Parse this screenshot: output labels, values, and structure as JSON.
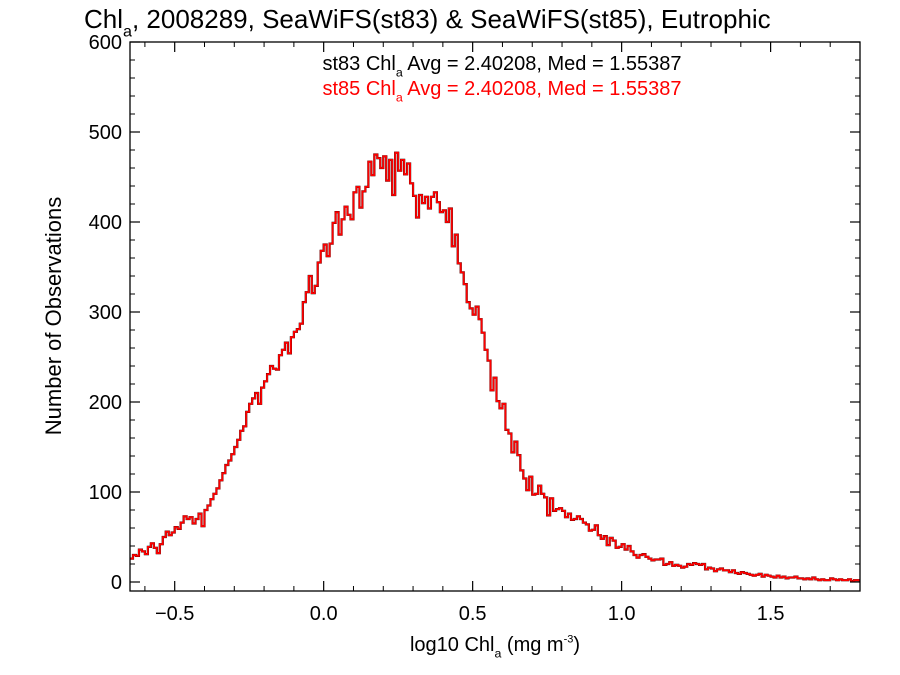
{
  "chart_data": {
    "type": "histogram-step",
    "title": {
      "parts": [
        {
          "text": "Chl",
          "style": "normal"
        },
        {
          "text": "a",
          "style": "sub"
        },
        {
          "text": ", 2008289, SeaWiFS(st83) & SeaWiFS(st85), Eutrophic",
          "style": "normal"
        }
      ]
    },
    "xlabel": {
      "parts": [
        {
          "text": "log10 Chl",
          "style": "normal"
        },
        {
          "text": "a",
          "style": "sub"
        },
        {
          "text": " (mg m",
          "style": "normal"
        },
        {
          "text": "-3",
          "style": "sup"
        },
        {
          "text": ")",
          "style": "normal"
        }
      ]
    },
    "ylabel": "Number of Observations",
    "xlim": [
      -0.65,
      1.8
    ],
    "ylim": [
      -10,
      600
    ],
    "xticks": [
      -0.5,
      0.0,
      0.5,
      1.0,
      1.5
    ],
    "xtick_labels": [
      "−0.5",
      "0.0",
      "0.5",
      "1.0",
      "1.5"
    ],
    "yticks": [
      0,
      100,
      200,
      300,
      400,
      500,
      600
    ],
    "ytick_labels": [
      "0",
      "100",
      "200",
      "300",
      "400",
      "500",
      "600"
    ],
    "grid": false,
    "annotations": [
      {
        "color": "#000000",
        "parts": [
          {
            "text": "st83 Chl",
            "style": "normal"
          },
          {
            "text": "a",
            "style": "sub"
          },
          {
            "text": " Avg = 2.40208, Med = 1.55387",
            "style": "normal"
          }
        ]
      },
      {
        "color": "#ff0000",
        "parts": [
          {
            "text": "st85 Chl",
            "style": "normal"
          },
          {
            "text": "a",
            "style": "sub"
          },
          {
            "text": " Avg = 2.40208, Med = 1.55387",
            "style": "normal"
          }
        ]
      }
    ],
    "series": [
      {
        "color": "#000000",
        "bin_start": -0.65,
        "bin_width": 0.01,
        "values": [
          26,
          30,
          29,
          36,
          34,
          31,
          39,
          43,
          38,
          32,
          42,
          50,
          56,
          52,
          55,
          61,
          59,
          66,
          73,
          70,
          72,
          65,
          70,
          76,
          62,
          80,
          85,
          92,
          98,
          104,
          113,
          121,
          130,
          135,
          142,
          150,
          158,
          168,
          173,
          189,
          198,
          204,
          210,
          198,
          216,
          223,
          231,
          240,
          237,
          236,
          252,
          258,
          266,
          254,
          272,
          278,
          281,
          287,
          311,
          322,
          340,
          321,
          329,
          355,
          368,
          375,
          362,
          376,
          399,
          411,
          386,
          403,
          417,
          408,
          403,
          433,
          439,
          416,
          434,
          439,
          467,
          452,
          475,
          471,
          460,
          473,
          446,
          469,
          430,
          477,
          457,
          469,
          453,
          465,
          443,
          429,
          405,
          430,
          421,
          428,
          415,
          428,
          433,
          422,
          411,
          413,
          400,
          415,
          373,
          386,
          354,
          344,
          331,
          311,
          304,
          297,
          306,
          292,
          277,
          258,
          246,
          213,
          227,
          201,
          193,
          198,
          169,
          165,
          144,
          156,
          141,
          124,
          115,
          102,
          117,
          97,
          98,
          107,
          98,
          94,
          74,
          93,
          79,
          81,
          82,
          79,
          72,
          76,
          69,
          70,
          73,
          70,
          66,
          64,
          57,
          58,
          63,
          52,
          48,
          51,
          41,
          49,
          46,
          38,
          39,
          42,
          36,
          40,
          34,
          30,
          27,
          30,
          31,
          28,
          26,
          24,
          25,
          25,
          26,
          19,
          20,
          22,
          18,
          19,
          18,
          16,
          17,
          20,
          19,
          21,
          20,
          19,
          20,
          14,
          16,
          15,
          12,
          14,
          15,
          13,
          13,
          11,
          13,
          10,
          9,
          11,
          10,
          9,
          8,
          7,
          8,
          9,
          6,
          8,
          7,
          6,
          5,
          7,
          5,
          6,
          4,
          5,
          5,
          6,
          4,
          4,
          3,
          4,
          3,
          5,
          3,
          2,
          3,
          2,
          2,
          4,
          3,
          2,
          3,
          2,
          2,
          3,
          1,
          2,
          2,
          1,
          2,
          1,
          1,
          2
        ]
      },
      {
        "color": "#ff0000",
        "bin_start": -0.65,
        "bin_width": 0.01,
        "values": [
          26,
          30,
          29,
          36,
          34,
          31,
          39,
          43,
          38,
          32,
          42,
          50,
          56,
          52,
          55,
          61,
          59,
          66,
          73,
          70,
          72,
          65,
          70,
          76,
          62,
          80,
          85,
          92,
          98,
          104,
          113,
          121,
          130,
          135,
          142,
          150,
          158,
          168,
          173,
          189,
          198,
          204,
          210,
          198,
          216,
          223,
          231,
          240,
          237,
          236,
          252,
          258,
          266,
          254,
          272,
          278,
          281,
          287,
          311,
          322,
          340,
          321,
          329,
          355,
          368,
          375,
          362,
          376,
          399,
          411,
          386,
          403,
          417,
          408,
          403,
          433,
          439,
          416,
          434,
          439,
          467,
          452,
          475,
          471,
          460,
          473,
          446,
          469,
          430,
          477,
          457,
          469,
          453,
          465,
          443,
          429,
          405,
          430,
          421,
          428,
          415,
          428,
          433,
          422,
          411,
          413,
          400,
          415,
          373,
          386,
          354,
          344,
          331,
          311,
          304,
          297,
          306,
          292,
          277,
          258,
          246,
          213,
          227,
          201,
          193,
          198,
          169,
          165,
          144,
          156,
          141,
          124,
          115,
          102,
          117,
          97,
          98,
          107,
          98,
          94,
          74,
          93,
          79,
          81,
          82,
          79,
          72,
          76,
          69,
          70,
          73,
          70,
          66,
          64,
          57,
          58,
          63,
          52,
          48,
          51,
          41,
          49,
          46,
          38,
          39,
          42,
          36,
          40,
          34,
          30,
          27,
          30,
          31,
          28,
          26,
          24,
          25,
          25,
          26,
          19,
          20,
          22,
          18,
          19,
          18,
          16,
          17,
          20,
          19,
          21,
          20,
          19,
          20,
          14,
          16,
          15,
          12,
          14,
          15,
          13,
          13,
          11,
          13,
          10,
          9,
          11,
          10,
          9,
          8,
          7,
          8,
          9,
          6,
          8,
          7,
          6,
          5,
          7,
          5,
          6,
          4,
          5,
          5,
          6,
          4,
          4,
          3,
          4,
          3,
          5,
          3,
          2,
          3,
          2,
          2,
          4,
          3,
          2,
          3,
          2,
          2,
          3,
          1,
          2,
          2,
          1,
          2,
          1,
          1,
          2
        ]
      }
    ]
  }
}
